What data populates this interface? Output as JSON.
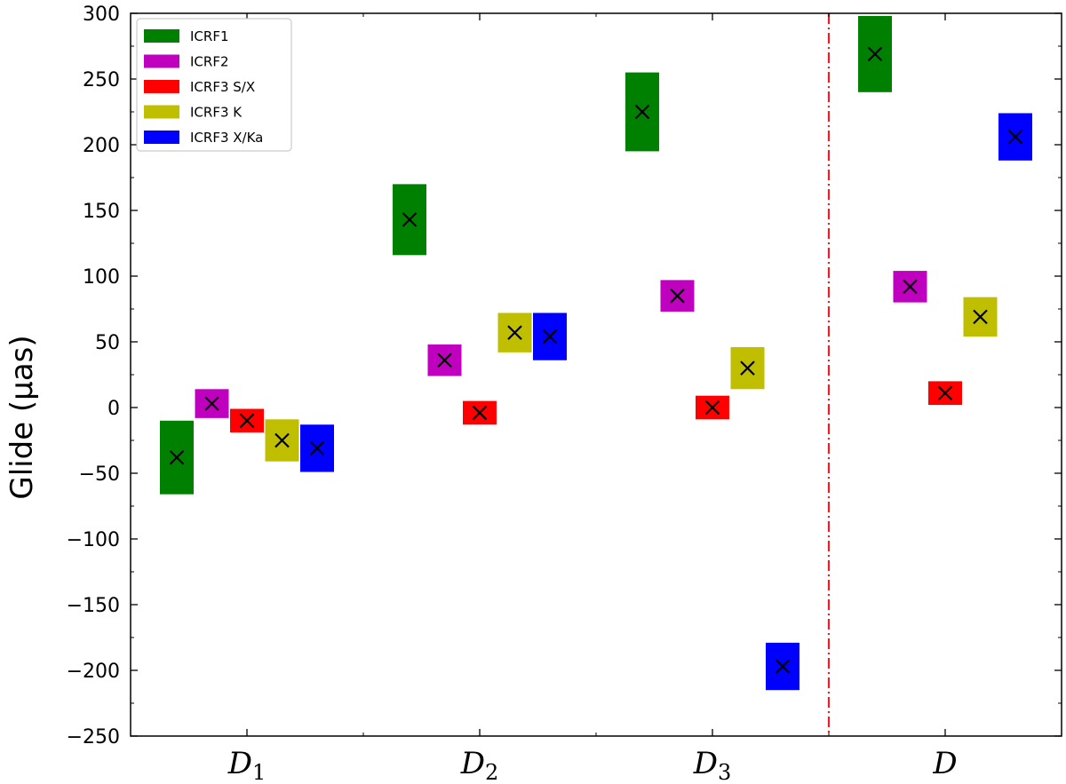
{
  "chart_data": {
    "type": "errorbox",
    "title": "",
    "xlabel": "",
    "ylabel": "Glide (μas)",
    "ylim": [
      -250,
      300
    ],
    "yticks": [
      -250,
      -200,
      -150,
      -100,
      -50,
      0,
      50,
      100,
      150,
      200,
      250,
      300
    ],
    "categories": [
      {
        "base": "D",
        "sub": "1"
      },
      {
        "base": "D",
        "sub": "2"
      },
      {
        "base": "D",
        "sub": "3"
      },
      {
        "base": "D",
        "sub": ""
      }
    ],
    "divider_after_category": 2,
    "divider_color": "#e8202a",
    "legend_position": "top-left",
    "series": [
      {
        "name": "ICRF1",
        "color": "#008000",
        "values": [
          -38,
          143,
          225,
          269
        ],
        "errors": [
          28,
          27,
          30,
          29
        ]
      },
      {
        "name": "ICRF2",
        "color": "#bf00bf",
        "values": [
          3,
          36,
          85,
          92
        ],
        "errors": [
          11,
          12,
          12,
          12
        ]
      },
      {
        "name": "ICRF3 S/X",
        "color": "#ff0000",
        "values": [
          -10,
          -4,
          0,
          11
        ],
        "errors": [
          9,
          9,
          9,
          9
        ]
      },
      {
        "name": "ICRF3 K",
        "color": "#bfbf00",
        "values": [
          -25,
          57,
          30,
          69
        ],
        "errors": [
          16,
          15,
          16,
          15
        ]
      },
      {
        "name": "ICRF3 X/Ka",
        "color": "#0000ff",
        "values": [
          -31,
          54,
          -197,
          206
        ],
        "errors": [
          18,
          18,
          18,
          18
        ]
      }
    ]
  }
}
